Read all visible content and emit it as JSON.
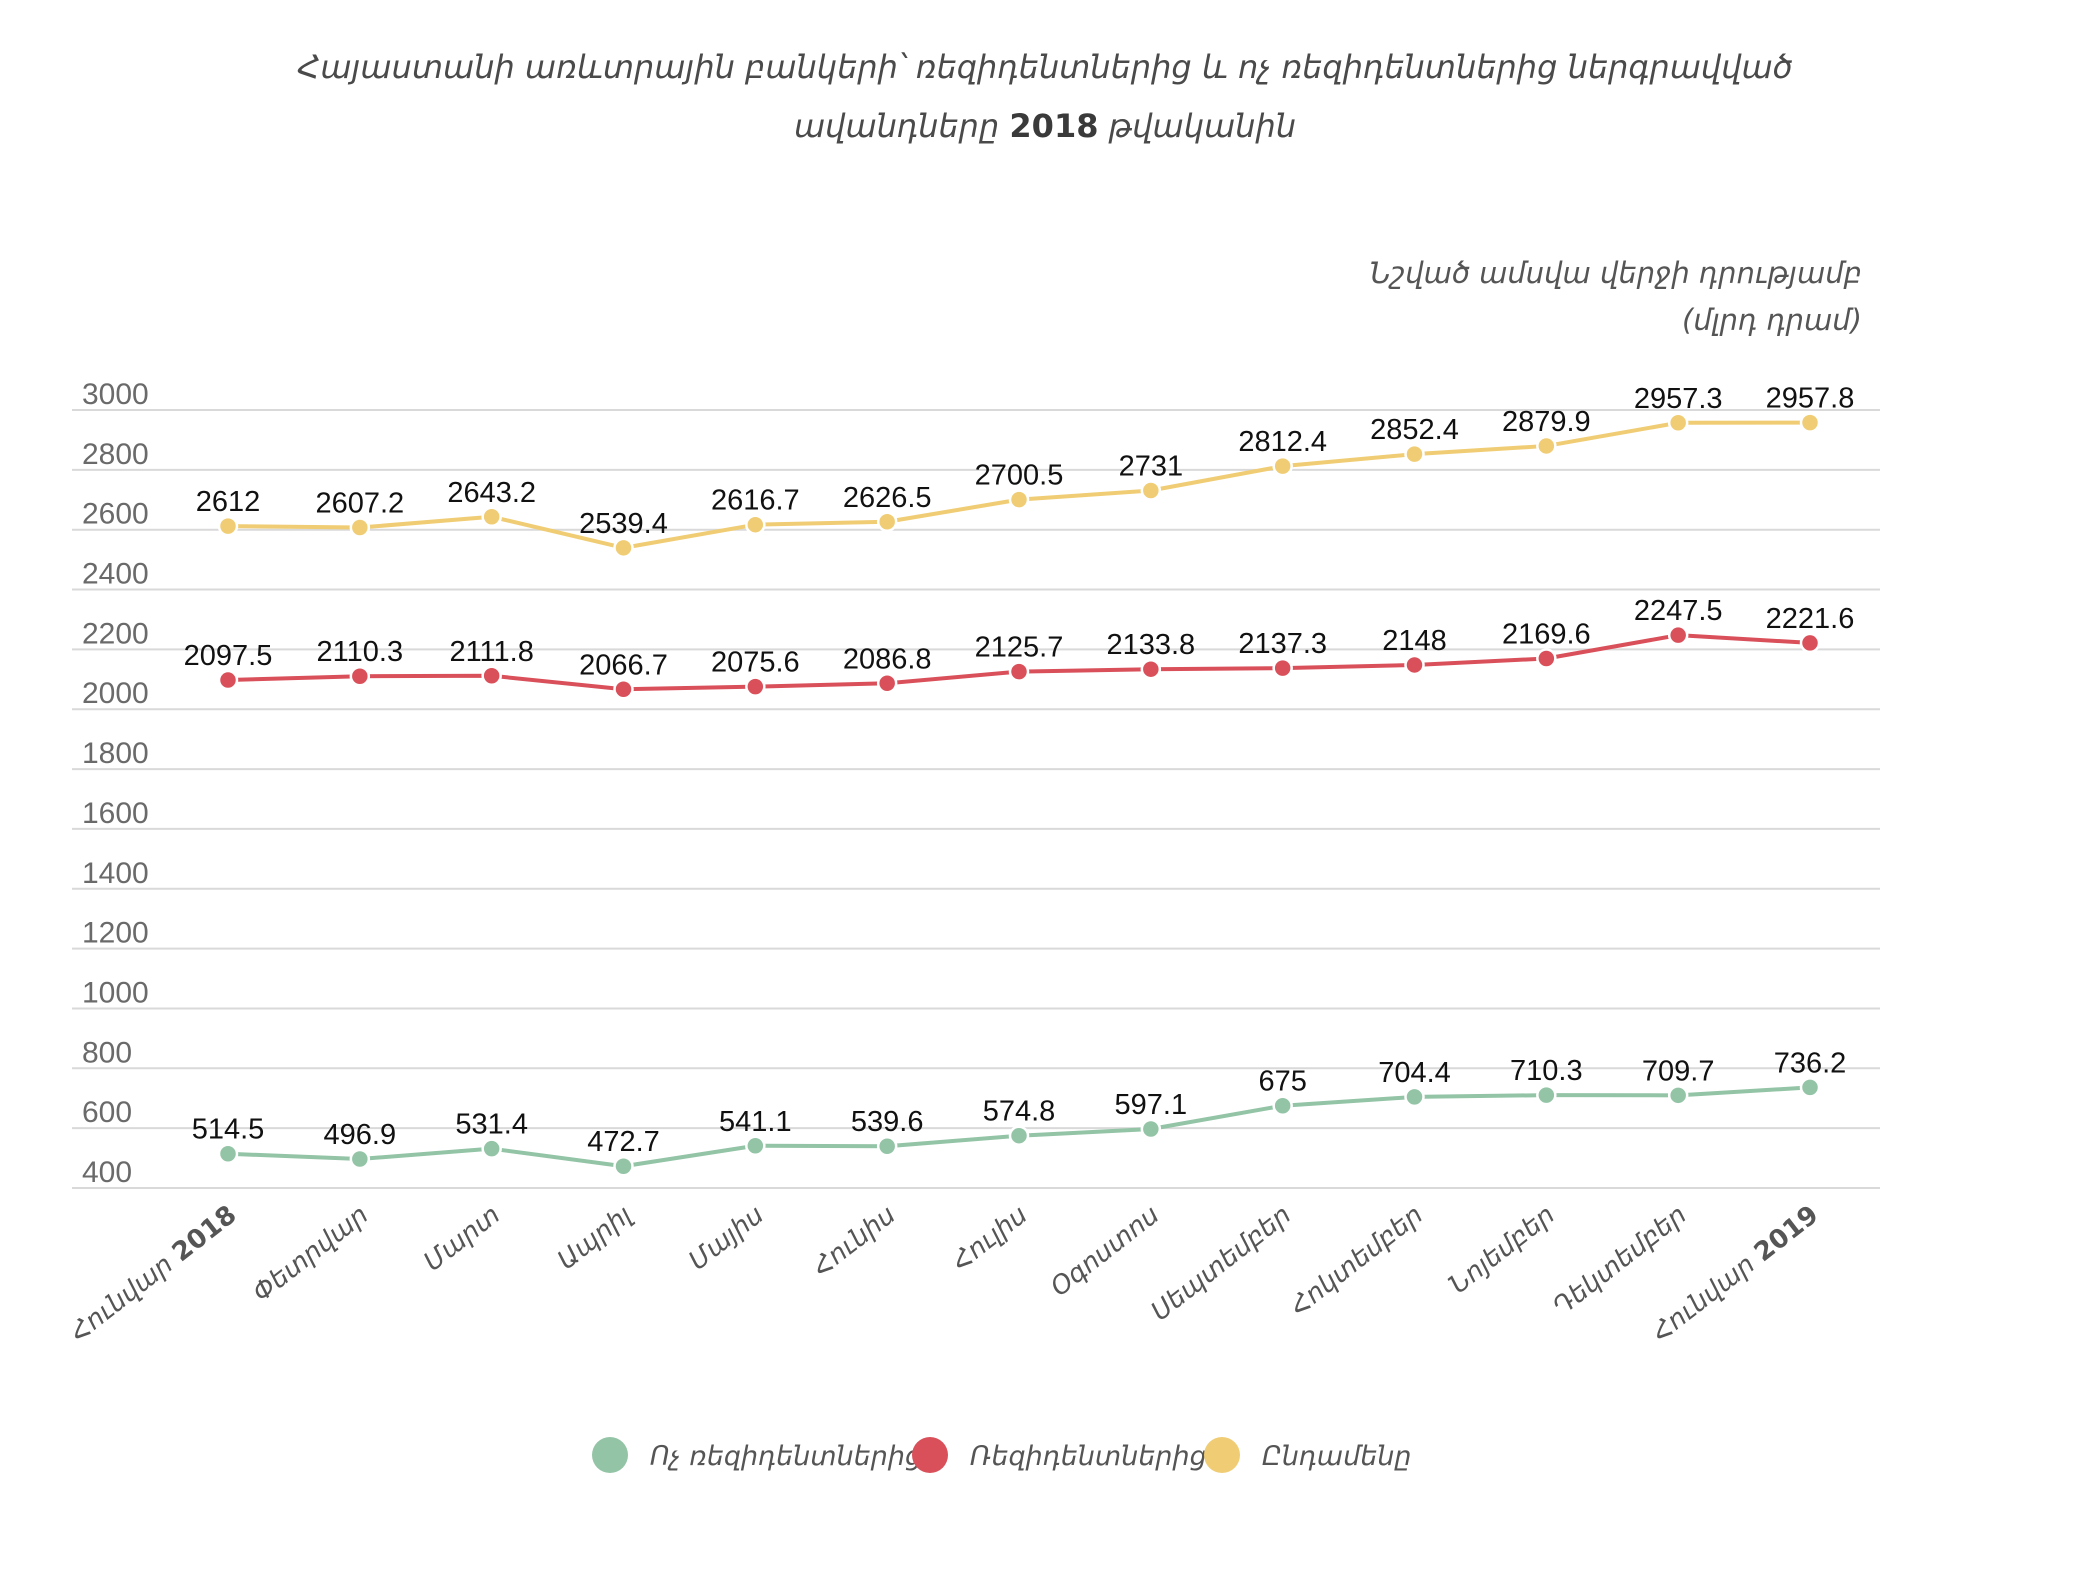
{
  "chart_data": {
    "type": "line",
    "title_line1": "Հայաստանի առևտրային բանկերի՝ ռեզիդենտներից և ոչ ռեզիդենտներից ներգրավված",
    "title_line2_pre": "ավանդները ",
    "title_line2_year": "2018",
    "title_line2_post": " թվականին",
    "subtitle_line1": "Նշված ամսվա վերջի դրությամբ",
    "subtitle_line2": "(մլրդ դրամ)",
    "ylim": [
      400,
      3000
    ],
    "yticks": [
      "3000",
      "2800",
      "2600",
      "2400",
      "2200",
      "2000",
      "1800",
      "1600",
      "1400",
      "1200",
      "1000",
      "800",
      "600",
      "400"
    ],
    "categories": [
      {
        "text": "Հունվար ",
        "num": "2018"
      },
      {
        "text": "Փետրվար",
        "num": ""
      },
      {
        "text": "Մարտ",
        "num": ""
      },
      {
        "text": "Ապրիլ",
        "num": ""
      },
      {
        "text": "Մայիս",
        "num": ""
      },
      {
        "text": "Հունիս",
        "num": ""
      },
      {
        "text": "Հուլիս",
        "num": ""
      },
      {
        "text": "Օգոստոս",
        "num": ""
      },
      {
        "text": "Սեպտեմբեր",
        "num": ""
      },
      {
        "text": "Հոկտեմբեր",
        "num": ""
      },
      {
        "text": "Նոյեմբեր",
        "num": ""
      },
      {
        "text": "Դեկտեմբեր",
        "num": ""
      },
      {
        "text": "Հունվար ",
        "num": "2019"
      }
    ],
    "series": [
      {
        "name": "Ընդամենը",
        "color": "#f0cd74",
        "values": [
          2612,
          2607.2,
          2643.2,
          2539.4,
          2616.7,
          2626.5,
          2700.5,
          2731,
          2812.4,
          2852.4,
          2879.9,
          2957.3,
          2957.8
        ],
        "labels": [
          "2612",
          "2607.2",
          "2643.2",
          "2539.4",
          "2616.7",
          "2626.5",
          "2700.5",
          "2731",
          "2812.4",
          "2852.4",
          "2879.9",
          "2957.3",
          "2957.8"
        ]
      },
      {
        "name": "Ռեզիդենտներից",
        "color": "#d9505a",
        "values": [
          2097.5,
          2110.3,
          2111.8,
          2066.7,
          2075.6,
          2086.8,
          2125.7,
          2133.8,
          2137.3,
          2148,
          2169.6,
          2247.5,
          2221.6
        ],
        "labels": [
          "2097.5",
          "2110.3",
          "2111.8",
          "2066.7",
          "2075.6",
          "2086.8",
          "2125.7",
          "2133.8",
          "2137.3",
          "2148",
          "2169.6",
          "2247.5",
          "2221.6"
        ]
      },
      {
        "name": "Ոչ ռեզիդենտներից",
        "color": "#93c4a6",
        "values": [
          514.5,
          496.9,
          531.4,
          472.7,
          541.1,
          539.6,
          574.8,
          597.1,
          675,
          704.4,
          710.3,
          709.7,
          736.2
        ],
        "labels": [
          "514.5",
          "496.9",
          "531.4",
          "472.7",
          "541.1",
          "539.6",
          "574.8",
          "597.1",
          "675",
          "704.4",
          "710.3",
          "709.7",
          "736.2"
        ]
      }
    ],
    "legend": {
      "placement": "bottom",
      "items": [
        {
          "name": "Ոչ ռեզիդենտներից",
          "color": "#93c4a6"
        },
        {
          "name": "Ռեզիդենտներից",
          "color": "#d9505a"
        },
        {
          "name": "Ընդամենը",
          "color": "#f0cd74"
        }
      ]
    },
    "grid": true
  }
}
